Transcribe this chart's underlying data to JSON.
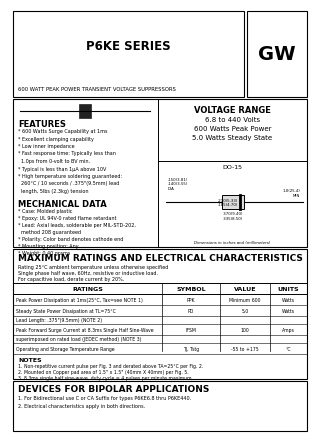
{
  "title": "P6KE SERIES",
  "logo": "GW",
  "subtitle": "600 WATT PEAK POWER TRANSIENT VOLTAGE SUPPRESSORS",
  "voltage_range_title": "VOLTAGE RANGE",
  "voltage_range_lines": [
    "6.8 to 440 Volts",
    "600 Watts Peak Power",
    "5.0 Watts Steady State"
  ],
  "features_title": "FEATURES",
  "features": [
    "* 600 Watts Surge Capability at 1ms",
    "* Excellent clamping capability",
    "* Low inner impedance",
    "* Fast response time: Typically less than",
    "  1.0ps from 0-volt to BV min.",
    "* Typical is less than 1μA above 10V",
    "* High temperature soldering guaranteed:",
    "  260°C / 10 seconds / .375\"(9.5mm) lead",
    "  length, 5lbs (2.3kg) tension"
  ],
  "mech_title": "MECHANICAL DATA",
  "mech": [
    "* Case: Molded plastic",
    "* Epoxy: UL 94V-0 rated flame retardant",
    "* Lead: Axial leads, solderable per MIL-STD-202,",
    "  method 208 guaranteed",
    "* Polarity: Color band denotes cathode end",
    "* Mounting position: Any",
    "* Weight: 0.40 grams"
  ],
  "ratings_title": "MAXIMUM RATINGS AND ELECTRICAL CHARACTERISTICS",
  "ratings_note1": "Rating 25°C ambient temperature unless otherwise specified",
  "ratings_note2": "Single phase half wave, 60Hz, resistive or inductive load.",
  "ratings_note3": "For capacitive load, derate current by 20%.",
  "table_headers": [
    "RATINGS",
    "SYMBOL",
    "VALUE",
    "UNITS"
  ],
  "table_rows": [
    [
      "Peak Power Dissipation at 1ms(25°C, Tax=see NOTE 1)",
      "PPK",
      "Minimum 600",
      "Watts"
    ],
    [
      "Steady State Power Dissipation at TL=75°C",
      "PD",
      "5.0",
      "Watts"
    ],
    [
      "Lead Length: .375\"(9.5mm) (NOTE 2)",
      "",
      "",
      ""
    ],
    [
      "Peak Forward Surge Current at 8.3ms Single Half Sine-Wave",
      "IFSM",
      "100",
      "Amps"
    ],
    [
      "superimposed on rated load (JEDEC method) (NOTE 3)",
      "",
      "",
      ""
    ],
    [
      "Operating and Storage Temperature Range",
      "TJ, Tstg",
      "-55 to +175",
      "°C"
    ]
  ],
  "notes_title": "NOTES",
  "notes": [
    "1. Non-repetitive current pulse per Fig. 3 and derated above TA=25°C per Fig. 2.",
    "2. Mounted on Copper pad area of 1.5\" x 1.5\" (40mm X 40mm) per Fig. 5.",
    "3. 8.3ms single half sine-wave, duty cycle = 4 pulses per minute maximum."
  ],
  "bipolar_title": "DEVICES FOR BIPOLAR APPLICATIONS",
  "bipolar": [
    "1. For Bidirectional use C or CA Suffix for types P6KE6.8 thru P6KE440.",
    "2. Electrical characteristics apply in both directions."
  ],
  "do15_label": "DO-15",
  "dim_note": "Dimensions in inches and (millimeters)",
  "bg_color": "#ffffff",
  "text_color": "#000000"
}
